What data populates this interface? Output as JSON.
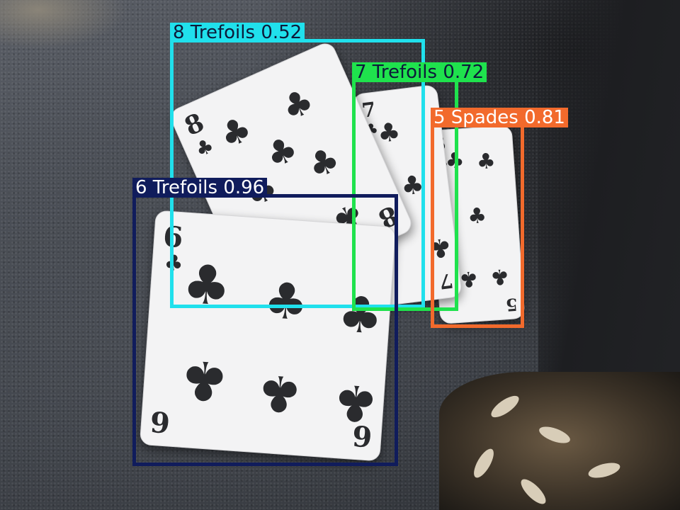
{
  "detections": [
    {
      "label": "8 Trefoils",
      "score": "0.52",
      "color": "#20e0ec",
      "text_color": "#0d1a3a"
    },
    {
      "label": "7 Trefoils",
      "score": "0.72",
      "color": "#1fe24d",
      "text_color": "#0d1a3a"
    },
    {
      "label": "5 Spades",
      "score": "0.81",
      "color": "#f26a2c",
      "text_color": "#ffffff"
    },
    {
      "label": "6 Trefoils",
      "score": "0.96",
      "color": "#101c5c",
      "text_color": "#ffffff"
    }
  ],
  "cards": [
    {
      "name": "eight-of-clubs-card",
      "rank": "8",
      "suit": "♣"
    },
    {
      "name": "seven-of-clubs-card",
      "rank": "7",
      "suit": "♣"
    },
    {
      "name": "five-of-clubs-card",
      "rank": "5",
      "suit": "♣"
    },
    {
      "name": "six-of-clubs-card",
      "rank": "6",
      "suit": "♣"
    }
  ]
}
